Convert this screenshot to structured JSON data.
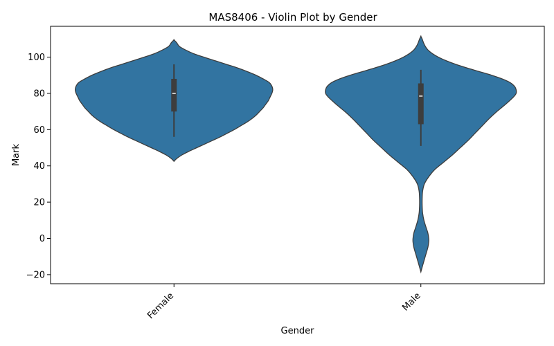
{
  "chart_data": {
    "type": "violin",
    "title": "MAS8406 - Violin Plot by Gender",
    "xlabel": "Gender",
    "ylabel": "Mark",
    "ylim": [
      -25,
      117
    ],
    "yticks": [
      -20,
      0,
      20,
      40,
      60,
      80,
      100
    ],
    "grid": false,
    "colors": {
      "fill": "#3274a1",
      "edge": "#3d3d3d",
      "box": "#3d3d3d",
      "median": "#ffffff"
    },
    "categories": [
      "Female",
      "Male"
    ],
    "violins": [
      {
        "category": "Female",
        "min": 42.5,
        "max": 109.5,
        "profile": [
          [
            42.5,
            0.0
          ],
          [
            44,
            0.03
          ],
          [
            46,
            0.09
          ],
          [
            48,
            0.17
          ],
          [
            50,
            0.26
          ],
          [
            52,
            0.35
          ],
          [
            54,
            0.44
          ],
          [
            56,
            0.53
          ],
          [
            58,
            0.61
          ],
          [
            60,
            0.69
          ],
          [
            62,
            0.76
          ],
          [
            64,
            0.83
          ],
          [
            66,
            0.89
          ],
          [
            68,
            0.94
          ],
          [
            70,
            0.98
          ],
          [
            72,
            1.02
          ],
          [
            74,
            1.05
          ],
          [
            76,
            1.08
          ],
          [
            78,
            1.1
          ],
          [
            80,
            1.12
          ],
          [
            82,
            1.13
          ],
          [
            84,
            1.12
          ],
          [
            86,
            1.09
          ],
          [
            88,
            1.02
          ],
          [
            90,
            0.94
          ],
          [
            92,
            0.84
          ],
          [
            94,
            0.73
          ],
          [
            96,
            0.6
          ],
          [
            98,
            0.47
          ],
          [
            100,
            0.34
          ],
          [
            102,
            0.22
          ],
          [
            104,
            0.13
          ],
          [
            106,
            0.06
          ],
          [
            108,
            0.03
          ],
          [
            109.5,
            0.0
          ]
        ],
        "whisker": [
          56,
          96
        ],
        "quartiles": [
          70,
          88
        ],
        "median": 80
      },
      {
        "category": "Male",
        "min": -18.5,
        "max": 111.5,
        "profile": [
          [
            -18.5,
            0.0
          ],
          [
            -15,
            0.02
          ],
          [
            -10,
            0.05
          ],
          [
            -5,
            0.08
          ],
          [
            -2,
            0.09
          ],
          [
            0,
            0.09
          ],
          [
            3,
            0.08
          ],
          [
            6,
            0.06
          ],
          [
            10,
            0.035
          ],
          [
            14,
            0.02
          ],
          [
            18,
            0.015
          ],
          [
            22,
            0.015
          ],
          [
            26,
            0.02
          ],
          [
            30,
            0.04
          ],
          [
            34,
            0.09
          ],
          [
            38,
            0.16
          ],
          [
            42,
            0.26
          ],
          [
            46,
            0.36
          ],
          [
            50,
            0.45
          ],
          [
            54,
            0.54
          ],
          [
            58,
            0.62
          ],
          [
            62,
            0.7
          ],
          [
            66,
            0.78
          ],
          [
            70,
            0.87
          ],
          [
            74,
            0.97
          ],
          [
            78,
            1.06
          ],
          [
            80,
            1.09
          ],
          [
            82,
            1.09
          ],
          [
            84,
            1.07
          ],
          [
            86,
            1.02
          ],
          [
            88,
            0.93
          ],
          [
            90,
            0.81
          ],
          [
            92,
            0.67
          ],
          [
            94,
            0.53
          ],
          [
            96,
            0.4
          ],
          [
            98,
            0.29
          ],
          [
            100,
            0.2
          ],
          [
            102,
            0.13
          ],
          [
            104,
            0.08
          ],
          [
            106,
            0.05
          ],
          [
            108,
            0.03
          ],
          [
            110,
            0.015
          ],
          [
            111.5,
            0.0
          ]
        ],
        "whisker": [
          51,
          93
        ],
        "quartiles": [
          63,
          85.5
        ],
        "median": 78.5
      }
    ]
  }
}
